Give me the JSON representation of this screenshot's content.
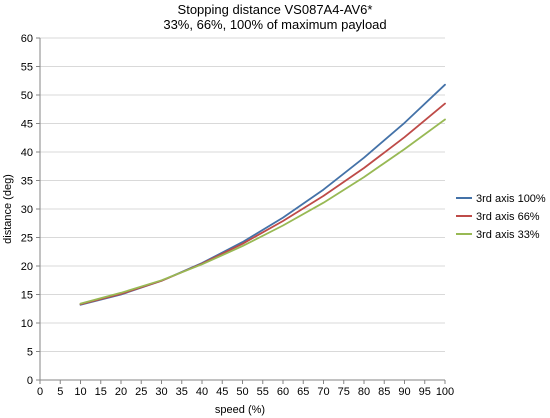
{
  "chart_data": {
    "type": "line",
    "title": "Stopping distance VS087A4-AV6*",
    "subtitle": "33%, 66%, 100% of maximum payload",
    "xlabel": "speed (%)",
    "ylabel": "distance (deg)",
    "xlim": [
      0,
      100
    ],
    "ylim": [
      0,
      60
    ],
    "xticks": [
      "0",
      "5",
      "10",
      "15",
      "20",
      "25",
      "30",
      "35",
      "40",
      "45",
      "50",
      "55",
      "60",
      "65",
      "70",
      "75",
      "80",
      "85",
      "90",
      "95",
      "100"
    ],
    "yticks": [
      "0",
      "5",
      "10",
      "15",
      "20",
      "25",
      "30",
      "35",
      "40",
      "45",
      "50",
      "55",
      "60"
    ],
    "grid": "horizontal",
    "legend_position": "right",
    "x": [
      10,
      20,
      30,
      40,
      50,
      60,
      70,
      80,
      90,
      100
    ],
    "series": [
      {
        "name": "3rd axis 100%",
        "color": "#4472a8",
        "values": [
          13.2,
          15.0,
          17.4,
          20.5,
          24.2,
          28.5,
          33.4,
          39.0,
          45.1,
          51.8
        ]
      },
      {
        "name": "3rd axis 66%",
        "color": "#be4b48",
        "values": [
          13.3,
          15.1,
          17.4,
          20.4,
          23.9,
          27.9,
          32.3,
          37.2,
          42.6,
          48.5
        ]
      },
      {
        "name": "3rd axis 33%",
        "color": "#98b954",
        "values": [
          13.4,
          15.3,
          17.5,
          20.3,
          23.5,
          27.1,
          31.1,
          35.6,
          40.5,
          45.7
        ]
      }
    ]
  }
}
